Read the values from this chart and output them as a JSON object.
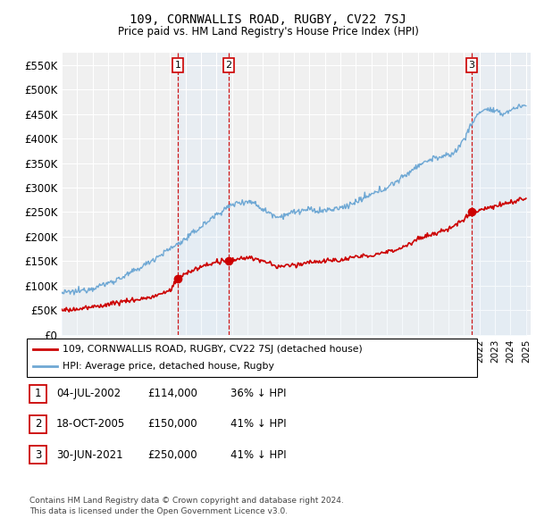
{
  "title": "109, CORNWALLIS ROAD, RUGBY, CV22 7SJ",
  "subtitle": "Price paid vs. HM Land Registry's House Price Index (HPI)",
  "xlim_start": 1995.0,
  "xlim_end": 2025.3,
  "ylim": [
    0,
    575000
  ],
  "yticks": [
    0,
    50000,
    100000,
    150000,
    200000,
    250000,
    300000,
    350000,
    400000,
    450000,
    500000,
    550000
  ],
  "ytick_labels": [
    "£0",
    "£50K",
    "£100K",
    "£150K",
    "£200K",
    "£250K",
    "£300K",
    "£350K",
    "£400K",
    "£450K",
    "£500K",
    "£550K"
  ],
  "sale_dates": [
    2002.504,
    2005.795,
    2021.494
  ],
  "sale_prices": [
    114000,
    150000,
    250000
  ],
  "sale_labels": [
    "1",
    "2",
    "3"
  ],
  "hpi_color": "#6fa8d4",
  "hpi_fill_color": "#daeaf7",
  "price_color": "#cc0000",
  "vline_color": "#cc0000",
  "background_color": "#f0f0f0",
  "grid_color": "#ffffff",
  "legend_entries": [
    "109, CORNWALLIS ROAD, RUGBY, CV22 7SJ (detached house)",
    "HPI: Average price, detached house, Rugby"
  ],
  "table_entries": [
    {
      "num": "1",
      "date": "04-JUL-2002",
      "price": "£114,000",
      "hpi": "36% ↓ HPI"
    },
    {
      "num": "2",
      "date": "18-OCT-2005",
      "price": "£150,000",
      "hpi": "41% ↓ HPI"
    },
    {
      "num": "3",
      "date": "30-JUN-2021",
      "price": "£250,000",
      "hpi": "41% ↓ HPI"
    }
  ],
  "footer": "Contains HM Land Registry data © Crown copyright and database right 2024.\nThis data is licensed under the Open Government Licence v3.0.",
  "hpi_control_years": [
    1995,
    1996,
    1997,
    1998,
    1999,
    2000,
    2001,
    2002,
    2003,
    2004,
    2005,
    2006,
    2006.5,
    2007,
    2007.5,
    2008,
    2009,
    2009.5,
    2010,
    2011,
    2011.5,
    2012,
    2013,
    2014,
    2015,
    2016,
    2017,
    2018,
    2019,
    2020,
    2020.5,
    2021,
    2021.5,
    2022,
    2022.5,
    2023,
    2023.5,
    2024,
    2024.5,
    2025
  ],
  "hpi_control_vals": [
    85000,
    88000,
    95000,
    105000,
    118000,
    135000,
    155000,
    175000,
    195000,
    220000,
    245000,
    265000,
    270000,
    272000,
    268000,
    255000,
    240000,
    245000,
    250000,
    255000,
    252000,
    253000,
    258000,
    270000,
    285000,
    300000,
    320000,
    345000,
    360000,
    365000,
    375000,
    400000,
    430000,
    455000,
    460000,
    455000,
    450000,
    458000,
    465000,
    468000
  ],
  "price_control_years": [
    1995,
    1996,
    1997,
    1998,
    1999,
    2000,
    2001,
    2002,
    2002.5,
    2003,
    2004,
    2005,
    2005.8,
    2006,
    2007,
    2008,
    2009,
    2010,
    2011,
    2012,
    2013,
    2014,
    2015,
    2016,
    2017,
    2018,
    2019,
    2020,
    2021,
    2021.5,
    2022,
    2023,
    2024,
    2025
  ],
  "price_control_vals": [
    50000,
    52000,
    56000,
    62000,
    68000,
    72000,
    78000,
    90000,
    114000,
    125000,
    138000,
    148000,
    150000,
    152000,
    158000,
    150000,
    138000,
    142000,
    148000,
    150000,
    152000,
    158000,
    162000,
    168000,
    178000,
    195000,
    205000,
    215000,
    235000,
    250000,
    255000,
    262000,
    270000,
    278000
  ]
}
